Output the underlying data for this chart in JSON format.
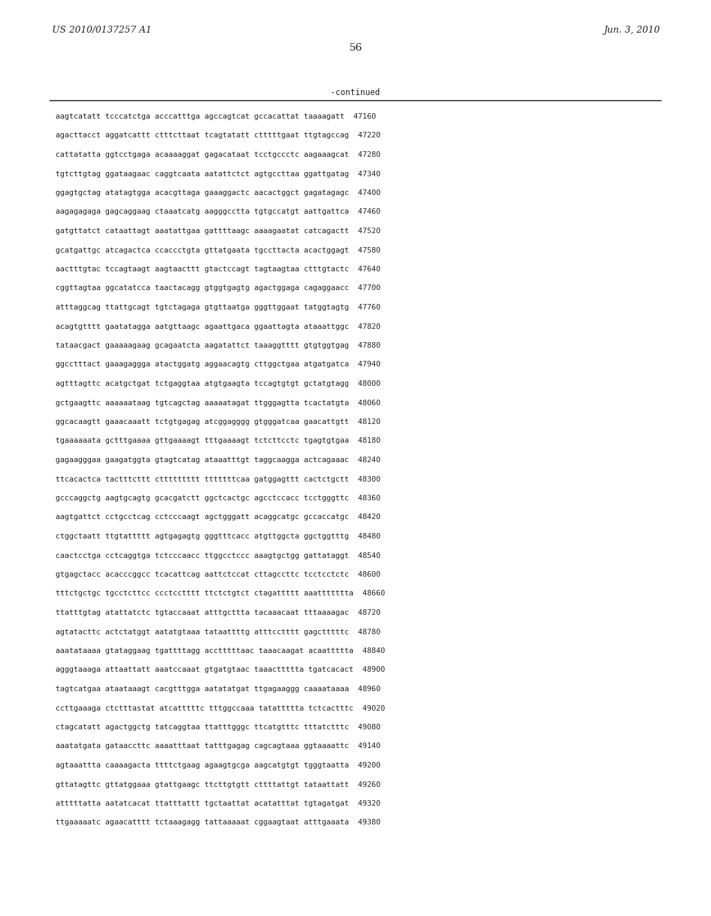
{
  "header_left": "US 2010/0137257 A1",
  "header_right": "Jun. 3, 2010",
  "page_number": "56",
  "continued_label": "-continued",
  "background_color": "#ffffff",
  "text_color": "#231f20",
  "sequence_lines": [
    "aagtcatatt tcccatctga acccatttga agccagtcat gccacattat taaaagatt  47160",
    "agacttacct aggatcattt ctttcttaat tcagtatatt ctttttgaat ttgtagccag  47220",
    "cattatatta ggtcctgaga acaaaaggat gagacataat tcctgccctc aagaaagcat  47280",
    "tgtcttgtag ggataagaac caggtcaata aatattctct agtgccttaa ggattgatag  47340",
    "ggagtgctag atatagtgga acacgttaga gaaaggactc aacactggct gagatagagc  47400",
    "aagagagaga gagcaggaag ctaaatcatg aagggcctta tgtgccatgt aattgattca  47460",
    "gatgttatct cataattagt aaatattgaa gattttaagc aaaagaatat catcagactt  47520",
    "gcatgattgc atcagactca ccaccctgta gttatgaata tgccttacta acactggagt  47580",
    "aactttgtac tccagtaagt aagtaacttt gtactccagt tagtaagtaa ctttgtactc  47640",
    "cggttagtaa ggcatatcca taactacagg gtggtgagtg agactggaga cagaggaacc  47700",
    "atttaggcag ttattgcagt tgtctagaga gtgttaatga gggttggaat tatggtagtg  47760",
    "acagtgtttt gaatatagga aatgttaagc agaattgaca ggaattagta ataaattggc  47820",
    "tataacgact gaaaaagaag gcagaatcta aagatattct taaaggtttt gtgtggtgag  47880",
    "ggcctttact gaaagaggga atactggatg aggaacagtg cttggctgaa atgatgatca  47940",
    "agtttagttc acatgctgat tctgaggtaa atgtgaagta tccagtgtgt gctatgtagg  48000",
    "gctgaagttc aaaaaataag tgtcagctag aaaaatagat ttgggagtta tcactatgta  48060",
    "ggcacaagtt gaaacaaatt tctgtgagag atcggagggg gtgggatcaa gaacattgtt  48120",
    "tgaaaaaata gctttgaaaa gttgaaaagt tttgaaaagt tctcttcctc tgagtgtgaa  48180",
    "gagaagggaa gaagatggta gtagtcatag ataaatttgt taggcaagga actcagaaac  48240",
    "ttcacactca tactttcttt cttttttttt tttttttcaa gatggagttt cactctgctt  48300",
    "gcccaggctg aagtgcagtg gcacgatctt ggctcactgc agcctccacc tcctgggttc  48360",
    "aagtgattct cctgcctcag cctcccaagt agctgggatt acaggcatgc gccaccatgc  48420",
    "ctggctaatt ttgtattttt agtgagagtg gggtttcacc atgttggcta ggctggtttg  48480",
    "caactcctga cctcaggtga tctcccaacc ttggcctccc aaagtgctgg gattataggt  48540",
    "gtgagctacc acacccggcc tcacattcag aattctccat cttagccttc tcctcctctc  48600",
    "tttctgctgc tgcctcttcc ccctcctttt ttctctgtct ctagattttt aaattttttta  48660",
    "ttatttgtag atattatctc tgtaccaaat atttgcttta tacaaacaat tttaaaagac  48720",
    "agtatacttc actctatggt aatatgtaaa tataattttg atttcctttt gagctttttc  48780",
    "aaatataaaa gtataggaag tgattttagg acctttttaac taaacaagat acaattttta  48840",
    "agggtaaaga attaattatt aaatccaaat gtgatgtaac taaacttttta tgatcacact  48900",
    "tagtcatgaa ataataaagt cacgtttgga aatatatgat ttgagaaggg caaaataaaa  48960",
    "ccttgaaaga ctctttastat atcatttttc tttggccaaa tatattttta tctcactttc  49020",
    "ctagcatatt agactggctg tatcaggtaa ttatttgggc ttcatgtttc tttatctttc  49080",
    "aaatatgata gataaccttc aaaatttaat tatttgagag cagcagtaaa ggtaaaattc  49140",
    "agtaaattta caaaagacta ttttctgaag agaagtgcga aagcatgtgt tgggtaatta  49200",
    "gttatagttc gttatggaaa gtattgaagc ttcttgtgtt cttttattgt tataattatt  49260",
    "atttttatta aatatcacat ttatttattt tgctaattat acatatttat tgtagatgat  49320",
    "ttgaaaaatc agaacatttt tctaaagagg tattaaaaat cggaagtaat atttgaaata  49380"
  ]
}
